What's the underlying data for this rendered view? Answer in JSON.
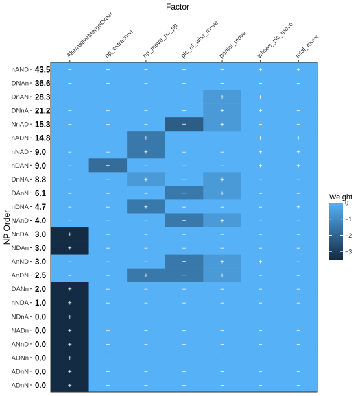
{
  "chart_data": {
    "type": "heatmap",
    "title": "Factor",
    "xlabel": "Factor",
    "ylabel": "NP Order",
    "legend": {
      "title": "Weight",
      "ticks": [
        0,
        -1,
        -2,
        -3
      ],
      "range": [
        -3.5,
        0
      ],
      "placement": "right"
    },
    "colors": {
      "high": "#56B1F7",
      "low": "#132B43"
    },
    "x": [
      "AlternativeMergeOrder",
      "np_extraction",
      "np_move_no_pp",
      "pic_of_who_move",
      "partial_move",
      "whose_pic_move",
      "total_move"
    ],
    "rows": [
      {
        "label": "nAND",
        "value": "43.5",
        "weights": [
          0,
          0,
          0,
          0,
          0,
          0,
          0
        ],
        "signs": [
          "−",
          "−",
          "−",
          "−",
          "−",
          "+",
          "+"
        ]
      },
      {
        "label": "DNAn",
        "value": "36.6",
        "weights": [
          0,
          0,
          0,
          0,
          0,
          0,
          0
        ],
        "signs": [
          "−",
          "−",
          "−",
          "−",
          "−",
          "−",
          "−"
        ]
      },
      {
        "label": "DnAN",
        "value": "28.3",
        "weights": [
          0,
          0,
          0,
          0,
          -0.6,
          0,
          0
        ],
        "signs": [
          "−",
          "−",
          "−",
          "−",
          "+",
          "+",
          "−"
        ]
      },
      {
        "label": "DNnA",
        "value": "21.2",
        "weights": [
          0,
          0,
          0,
          0,
          -0.6,
          0,
          0
        ],
        "signs": [
          "−",
          "−",
          "−",
          "−",
          "+",
          "+",
          "−"
        ]
      },
      {
        "label": "NnAD",
        "value": "15.3",
        "weights": [
          0,
          0,
          0,
          -2.2,
          -0.6,
          0,
          0
        ],
        "signs": [
          "−",
          "−",
          "−",
          "+",
          "+",
          "−",
          "−"
        ]
      },
      {
        "label": "nADN",
        "value": "14.8",
        "weights": [
          0,
          0,
          -1.5,
          0,
          0,
          0,
          0.1
        ],
        "signs": [
          "−",
          "−",
          "+",
          "−",
          "−",
          "+",
          "+"
        ]
      },
      {
        "label": "nNAD",
        "value": "9.0",
        "weights": [
          0,
          0,
          -1.5,
          0,
          0,
          0,
          0.1
        ],
        "signs": [
          "−",
          "−",
          "+",
          "−",
          "−",
          "+",
          "+"
        ]
      },
      {
        "label": "nDAN",
        "value": "9.0",
        "weights": [
          0,
          -1.8,
          0,
          0,
          0,
          0,
          0.1
        ],
        "signs": [
          "−",
          "+",
          "−",
          "−",
          "−",
          "+",
          "+"
        ]
      },
      {
        "label": "DnNA",
        "value": "8.8",
        "weights": [
          0,
          0,
          -0.6,
          0,
          -0.6,
          0,
          0
        ],
        "signs": [
          "−",
          "−",
          "+",
          "−",
          "+",
          "−",
          "−"
        ]
      },
      {
        "label": "DAnN",
        "value": "6.1",
        "weights": [
          0,
          0,
          0,
          -1.5,
          -0.6,
          0,
          0
        ],
        "signs": [
          "−",
          "−",
          "−",
          "+",
          "+",
          "−",
          "−"
        ]
      },
      {
        "label": "nDNA",
        "value": "4.7",
        "weights": [
          0,
          0,
          -1.5,
          0,
          0,
          0,
          0.1
        ],
        "signs": [
          "−",
          "−",
          "+",
          "−",
          "−",
          "−",
          "+"
        ]
      },
      {
        "label": "NAnD",
        "value": "4.0",
        "weights": [
          0,
          0,
          0,
          -1.5,
          -0.6,
          0,
          0
        ],
        "signs": [
          "−",
          "−",
          "−",
          "+",
          "+",
          "−",
          "−"
        ]
      },
      {
        "label": "NnDA",
        "value": "3.0",
        "weights": [
          -3.5,
          0,
          0,
          0,
          0,
          0,
          0
        ],
        "signs": [
          "+",
          "−",
          "−",
          "−",
          "−",
          "−",
          "−"
        ]
      },
      {
        "label": "NDAn",
        "value": "3.0",
        "weights": [
          -3.5,
          0,
          0,
          0,
          0,
          0,
          0
        ],
        "signs": [
          "+",
          "−",
          "−",
          "−",
          "−",
          "−",
          "−"
        ]
      },
      {
        "label": "AnND",
        "value": "3.0",
        "weights": [
          0,
          0,
          0,
          -1.5,
          -0.6,
          0,
          0
        ],
        "signs": [
          "−",
          "−",
          "−",
          "+",
          "+",
          "+",
          "−"
        ]
      },
      {
        "label": "AnDN",
        "value": "2.5",
        "weights": [
          0,
          0,
          -1.5,
          -1.5,
          -0.6,
          0,
          0
        ],
        "signs": [
          "−",
          "−",
          "+",
          "+",
          "+",
          "−",
          "−"
        ]
      },
      {
        "label": "DANn",
        "value": "2.0",
        "weights": [
          -3.5,
          0,
          0,
          0,
          0,
          0,
          0
        ],
        "signs": [
          "+",
          "−",
          "−",
          "−",
          "−",
          "−",
          "−"
        ]
      },
      {
        "label": "nNDA",
        "value": "1.0",
        "weights": [
          -3.5,
          0,
          0,
          0,
          0,
          0,
          0
        ],
        "signs": [
          "+",
          "−",
          "−",
          "−",
          "−",
          "−",
          "−"
        ]
      },
      {
        "label": "NDnA",
        "value": "0.0",
        "weights": [
          -3.5,
          0,
          0,
          0,
          0,
          0,
          0
        ],
        "signs": [
          "+",
          "−",
          "−",
          "−",
          "−",
          "−",
          "−"
        ]
      },
      {
        "label": "NADn",
        "value": "0.0",
        "weights": [
          -3.5,
          0,
          0,
          0,
          0,
          0,
          0
        ],
        "signs": [
          "+",
          "−",
          "−",
          "−",
          "−",
          "−",
          "−"
        ]
      },
      {
        "label": "ANnD",
        "value": "0.0",
        "weights": [
          -3.5,
          0,
          0,
          0,
          0,
          0,
          0
        ],
        "signs": [
          "+",
          "−",
          "−",
          "−",
          "−",
          "−",
          "−"
        ]
      },
      {
        "label": "ADNn",
        "value": "0.0",
        "weights": [
          -3.5,
          0,
          0,
          0,
          0,
          0,
          0
        ],
        "signs": [
          "+",
          "−",
          "−",
          "−",
          "−",
          "−",
          "−"
        ]
      },
      {
        "label": "ADnN",
        "value": "0.0",
        "weights": [
          -3.5,
          0,
          0,
          0,
          0,
          0,
          0
        ],
        "signs": [
          "+",
          "−",
          "−",
          "−",
          "−",
          "−",
          "−"
        ]
      },
      {
        "label": "ADnN",
        "value": "0.0",
        "weights": [
          -3.5,
          0,
          0,
          0,
          0,
          0,
          0
        ],
        "signs": [
          "+",
          "−",
          "−",
          "−",
          "−",
          "−",
          "−"
        ]
      }
    ]
  }
}
